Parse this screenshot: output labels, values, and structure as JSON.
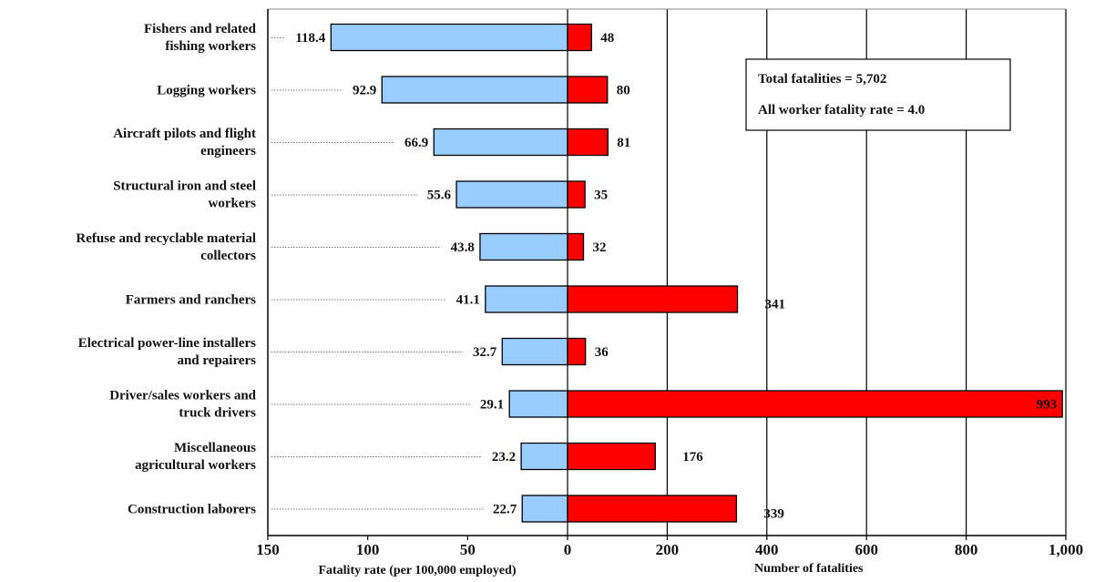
{
  "chart_data": {
    "type": "bar",
    "categories": [
      [
        "Fishers and related",
        "fishing workers"
      ],
      [
        "Logging workers"
      ],
      [
        "Aircraft pilots and flight",
        "engineers"
      ],
      [
        "Structural iron and steel",
        "workers"
      ],
      [
        "Refuse and recyclable material",
        "collectors"
      ],
      [
        "Farmers and ranchers"
      ],
      [
        "Electrical power-line installers",
        "and repairers"
      ],
      [
        "Driver/sales workers and",
        "truck drivers"
      ],
      [
        "Miscellaneous",
        "agricultural workers"
      ],
      [
        "Construction laborers"
      ]
    ],
    "series": [
      {
        "name": "",
        "values": [
          118.4,
          92.9,
          66.9,
          55.6,
          43.8,
          41.1,
          32.7,
          29.1,
          23.2,
          22.7
        ],
        "labels": [
          "118.4",
          "92.9",
          "66.9",
          "55.6",
          "43.8",
          "41.1",
          "32.7",
          "29.1",
          "23.2",
          "22.7"
        ],
        "color": "#99ccff"
      },
      {
        "name": "",
        "values": [
          48,
          80,
          81,
          35,
          32,
          341,
          36,
          993,
          176,
          339
        ],
        "labels": [
          "48",
          "80",
          "81",
          "35",
          "32",
          "341",
          "36",
          "993",
          "176",
          "339"
        ],
        "color": "#ff0000"
      }
    ],
    "left_axis": {
      "label": "Fatality rate (per 100,000 employed)",
      "range": [
        150,
        0
      ],
      "ticks": [
        "150",
        "100",
        "50",
        "0"
      ]
    },
    "right_axis": {
      "label": "Number of fatalities",
      "range": [
        0,
        1000
      ],
      "ticks": [
        "200",
        "400",
        "600",
        "800",
        "1,000"
      ]
    },
    "annotations": [
      "Total fatalities = 5,702",
      "All worker fatality rate = 4.0"
    ],
    "grid": true
  }
}
